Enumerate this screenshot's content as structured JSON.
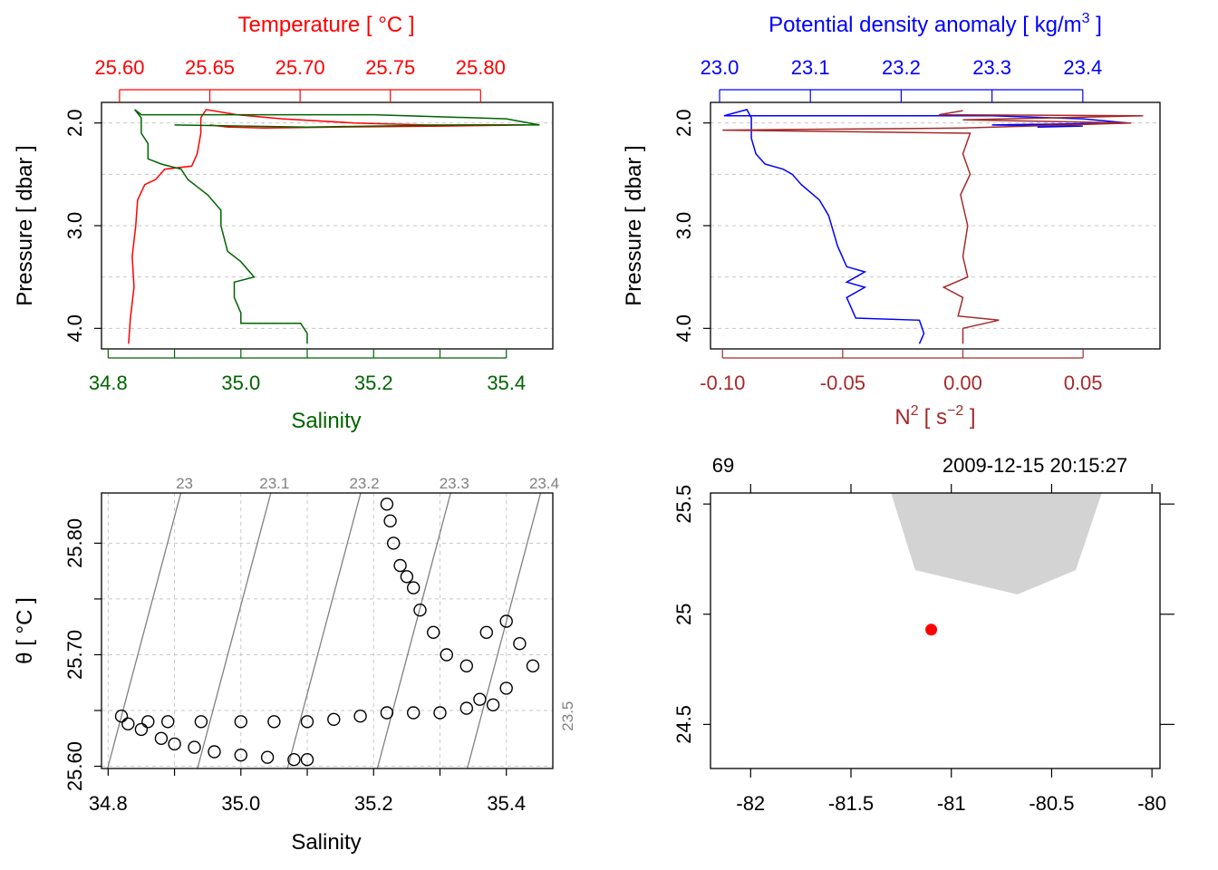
{
  "chart_data": [
    {
      "type": "line",
      "panel": "top-left",
      "x_bottom": {
        "label": "Salinity",
        "ticks": [
          "34.8",
          "35.0",
          "35.2",
          "35.4"
        ],
        "range": [
          34.79,
          35.47
        ],
        "color": "#006400"
      },
      "x_top": {
        "label": "Temperature [ °C ]",
        "ticks": [
          "25.60",
          "25.65",
          "25.70",
          "25.75",
          "25.80"
        ],
        "range": [
          25.59,
          25.84
        ],
        "color": "#ff0000"
      },
      "y": {
        "label": "Pressure [ dbar ]",
        "ticks": [
          "2.0",
          "3.0",
          "4.0"
        ],
        "range": [
          4.2,
          1.8
        ],
        "reversed": true
      },
      "grid": true,
      "series": [
        {
          "name": "Temperature",
          "color": "#ff0000",
          "axis": "top",
          "points": [
            [
              25.605,
              4.15
            ],
            [
              25.606,
              3.9
            ],
            [
              25.608,
              3.6
            ],
            [
              25.607,
              3.3
            ],
            [
              25.609,
              3.0
            ],
            [
              25.61,
              2.75
            ],
            [
              25.614,
              2.6
            ],
            [
              25.62,
              2.55
            ],
            [
              25.625,
              2.45
            ],
            [
              25.64,
              2.42
            ],
            [
              25.643,
              2.3
            ],
            [
              25.645,
              2.1
            ],
            [
              25.645,
              1.95
            ],
            [
              25.648,
              1.87
            ],
            [
              25.665,
              1.92
            ],
            [
              25.69,
              1.96
            ],
            [
              25.73,
              2.0
            ],
            [
              25.77,
              2.02
            ],
            [
              25.8,
              2.02
            ],
            [
              25.825,
              2.02
            ],
            [
              25.78,
              2.03
            ],
            [
              25.72,
              2.04
            ],
            [
              25.68,
              2.05
            ],
            [
              25.66,
              2.04
            ],
            [
              25.65,
              2.02
            ]
          ]
        },
        {
          "name": "Salinity",
          "color": "#006400",
          "axis": "bottom",
          "points": [
            [
              35.1,
              4.15
            ],
            [
              35.1,
              4.05
            ],
            [
              35.09,
              3.95
            ],
            [
              35.0,
              3.95
            ],
            [
              35.0,
              3.85
            ],
            [
              34.99,
              3.7
            ],
            [
              34.99,
              3.55
            ],
            [
              35.02,
              3.5
            ],
            [
              35.0,
              3.35
            ],
            [
              34.98,
              3.25
            ],
            [
              34.97,
              3.0
            ],
            [
              34.97,
              2.85
            ],
            [
              34.95,
              2.7
            ],
            [
              34.93,
              2.6
            ],
            [
              34.92,
              2.55
            ],
            [
              34.91,
              2.45
            ],
            [
              34.88,
              2.4
            ],
            [
              34.86,
              2.35
            ],
            [
              34.86,
              2.2
            ],
            [
              34.85,
              2.1
            ],
            [
              34.85,
              1.95
            ],
            [
              34.84,
              1.87
            ],
            [
              34.85,
              1.92
            ],
            [
              35.0,
              1.92
            ],
            [
              35.2,
              1.92
            ],
            [
              35.4,
              1.96
            ],
            [
              35.45,
              2.02
            ],
            [
              35.35,
              2.02
            ],
            [
              35.2,
              2.03
            ],
            [
              35.1,
              2.04
            ],
            [
              34.9,
              2.02
            ]
          ]
        }
      ]
    },
    {
      "type": "line",
      "panel": "top-right",
      "x_bottom": {
        "label": "N² [ s⁻² ]",
        "label_base": "N",
        "label_unit_open": "[ s",
        "label_unit_close": " ]",
        "ticks": [
          "-0.10",
          "-0.05",
          "0.00",
          "0.05"
        ],
        "range": [
          -0.105,
          0.082
        ],
        "color": "#a52a2a"
      },
      "x_top": {
        "label": "Potential density anomaly [ kg/m³ ]",
        "label_main": "Potential density anomaly [ kg/m",
        "label_sup": "3",
        "label_end": " ]",
        "ticks": [
          "23.0",
          "23.1",
          "23.2",
          "23.3",
          "23.4"
        ],
        "range": [
          22.99,
          23.485
        ],
        "color": "#0000ff"
      },
      "y": {
        "label": "Pressure [ dbar ]",
        "ticks": [
          "2.0",
          "3.0",
          "4.0"
        ],
        "range": [
          4.2,
          1.8
        ],
        "reversed": true
      },
      "grid": true,
      "series": [
        {
          "name": "Potential density anomaly",
          "color": "#0000ff",
          "axis": "top",
          "points": [
            [
              23.22,
              4.15
            ],
            [
              23.225,
              4.05
            ],
            [
              23.22,
              3.92
            ],
            [
              23.15,
              3.9
            ],
            [
              23.14,
              3.7
            ],
            [
              23.16,
              3.6
            ],
            [
              23.14,
              3.55
            ],
            [
              23.16,
              3.45
            ],
            [
              23.14,
              3.4
            ],
            [
              23.13,
              3.2
            ],
            [
              23.12,
              2.9
            ],
            [
              23.11,
              2.75
            ],
            [
              23.09,
              2.6
            ],
            [
              23.08,
              2.5
            ],
            [
              23.07,
              2.45
            ],
            [
              23.05,
              2.4
            ],
            [
              23.04,
              2.3
            ],
            [
              23.035,
              2.15
            ],
            [
              23.035,
              1.95
            ],
            [
              23.03,
              1.87
            ],
            [
              23.005,
              1.93
            ],
            [
              23.1,
              1.93
            ],
            [
              23.3,
              1.93
            ],
            [
              23.4,
              1.96
            ],
            [
              23.45,
              2.0
            ],
            [
              23.3,
              2.02
            ],
            [
              23.4,
              2.03
            ],
            [
              23.35,
              2.04
            ]
          ]
        },
        {
          "name": "N2",
          "color": "#a52a2a",
          "axis": "bottom",
          "points": [
            [
              0.0,
              4.15
            ],
            [
              0.0,
              4.0
            ],
            [
              0.015,
              3.92
            ],
            [
              -0.002,
              3.88
            ],
            [
              0.0,
              3.7
            ],
            [
              -0.008,
              3.6
            ],
            [
              0.002,
              3.5
            ],
            [
              0.0,
              3.3
            ],
            [
              0.002,
              3.0
            ],
            [
              -0.001,
              2.7
            ],
            [
              0.003,
              2.5
            ],
            [
              0.0,
              2.3
            ],
            [
              0.003,
              2.1
            ],
            [
              -0.1,
              2.07
            ],
            [
              0.0,
              2.05
            ],
            [
              0.07,
              2.0
            ],
            [
              0.0,
              1.97
            ],
            [
              0.075,
              1.93
            ],
            [
              -0.01,
              1.92
            ],
            [
              0.0,
              1.88
            ]
          ]
        }
      ]
    },
    {
      "type": "scatter",
      "panel": "bottom-left",
      "x": {
        "label": "Salinity",
        "ticks": [
          "34.8",
          "35.0",
          "35.2",
          "35.4"
        ],
        "range": [
          34.79,
          35.47
        ]
      },
      "y": {
        "label": "θ [ °C ]",
        "ticks": [
          "25.60",
          "25.70",
          "25.80"
        ],
        "range": [
          25.598,
          25.845
        ]
      },
      "grid": true,
      "isopycnal_labels": [
        "23",
        "23.1",
        "23.2",
        "23.3",
        "23.4",
        "23.5"
      ],
      "points": [
        [
          34.82,
          25.645
        ],
        [
          34.83,
          25.638
        ],
        [
          34.85,
          25.633
        ],
        [
          34.88,
          25.625
        ],
        [
          34.9,
          25.62
        ],
        [
          34.93,
          25.617
        ],
        [
          34.96,
          25.613
        ],
        [
          35.0,
          25.61
        ],
        [
          35.04,
          25.608
        ],
        [
          35.08,
          25.606
        ],
        [
          35.1,
          25.606
        ],
        [
          34.86,
          25.64
        ],
        [
          34.89,
          25.64
        ],
        [
          34.94,
          25.64
        ],
        [
          35.0,
          25.64
        ],
        [
          35.05,
          25.64
        ],
        [
          35.1,
          25.64
        ],
        [
          35.14,
          25.642
        ],
        [
          35.18,
          25.645
        ],
        [
          35.22,
          25.648
        ],
        [
          35.26,
          25.648
        ],
        [
          35.3,
          25.648
        ],
        [
          35.34,
          25.652
        ],
        [
          35.38,
          25.655
        ],
        [
          35.22,
          25.835
        ],
        [
          35.225,
          25.82
        ],
        [
          35.23,
          25.8
        ],
        [
          35.24,
          25.78
        ],
        [
          35.25,
          25.77
        ],
        [
          35.26,
          25.76
        ],
        [
          35.27,
          25.74
        ],
        [
          35.29,
          25.72
        ],
        [
          35.31,
          25.7
        ],
        [
          35.34,
          25.69
        ],
        [
          35.37,
          25.72
        ],
        [
          35.4,
          25.73
        ],
        [
          35.42,
          25.71
        ],
        [
          35.44,
          25.69
        ],
        [
          35.4,
          25.67
        ],
        [
          35.36,
          25.66
        ]
      ]
    },
    {
      "type": "map",
      "panel": "bottom-right",
      "x": {
        "ticks": [
          "-82",
          "-81.5",
          "-81",
          "-80.5",
          "-80"
        ],
        "range": [
          -82.2,
          -79.96
        ]
      },
      "y": {
        "ticks": [
          "24.5",
          "25",
          "25.5"
        ],
        "range": [
          24.3,
          25.55
        ]
      },
      "top_labels": {
        "station": "69",
        "datetime": "2009-12-15 20:15:27"
      },
      "land_polygon": [
        [
          -81.3,
          25.55
        ],
        [
          -80.25,
          25.55
        ],
        [
          -80.38,
          25.2
        ],
        [
          -80.67,
          25.09
        ],
        [
          -81.18,
          25.2
        ]
      ],
      "station": {
        "lon": -81.1,
        "lat": 24.93,
        "color": "#ff0000"
      }
    }
  ]
}
